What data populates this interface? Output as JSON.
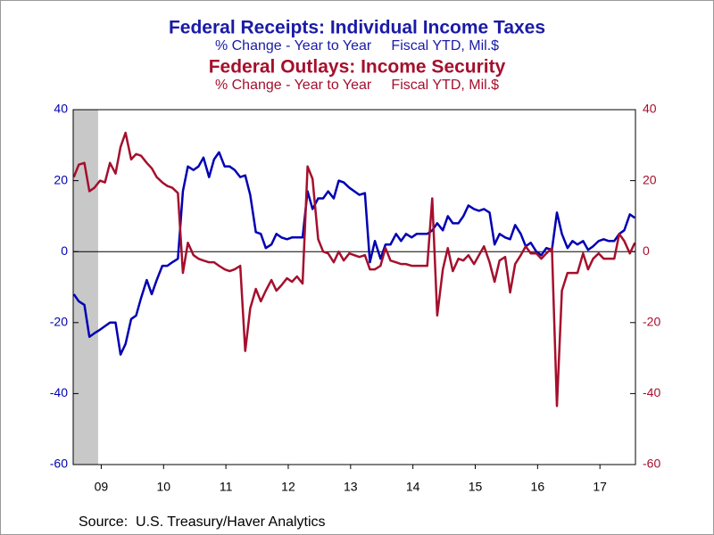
{
  "chart_data": {
    "type": "line",
    "title": "Federal Receipts: Individual Income Taxes",
    "subtitle": "% Change - Year to Year     Fiscal YTD, Mil.$",
    "title2": "Federal Outlays: Income Security",
    "subtitle2": "% Change - Year to Year     Fiscal YTD, Mil.$",
    "source": "Source:  U.S. Treasury/Haver Analytics",
    "x": [
      2009.06,
      2009.14,
      2009.23,
      2009.31,
      2009.39,
      2009.48,
      2009.56,
      2009.64,
      2009.73,
      2009.81,
      2009.89,
      2009.98,
      2010.06,
      2010.14,
      2010.23,
      2010.31,
      2010.39,
      2010.48,
      2010.56,
      2010.64,
      2010.73,
      2010.81,
      2010.89,
      2010.98,
      2011.06,
      2011.14,
      2011.23,
      2011.31,
      2011.39,
      2011.48,
      2011.56,
      2011.64,
      2011.73,
      2011.81,
      2011.89,
      2011.98,
      2012.06,
      2012.14,
      2012.23,
      2012.31,
      2012.39,
      2012.48,
      2012.56,
      2012.64,
      2012.73,
      2012.81,
      2012.89,
      2012.98,
      2013.06,
      2013.14,
      2013.23,
      2013.31,
      2013.39,
      2013.48,
      2013.56,
      2013.64,
      2013.73,
      2013.81,
      2013.89,
      2013.98,
      2014.06,
      2014.14,
      2014.23,
      2014.31,
      2014.39,
      2014.48,
      2014.56,
      2014.64,
      2014.73,
      2014.81,
      2014.89,
      2014.98,
      2015.06,
      2015.14,
      2015.23,
      2015.31,
      2015.39,
      2015.48,
      2015.56,
      2015.64,
      2015.73,
      2015.81,
      2015.89,
      2015.98,
      2016.06,
      2016.14,
      2016.23,
      2016.31,
      2016.39,
      2016.48,
      2016.56,
      2016.64,
      2016.73,
      2016.81,
      2016.89,
      2016.98,
      2017.06,
      2017.14,
      2017.23,
      2017.31,
      2017.39,
      2017.48,
      2017.56,
      2017.64,
      2017.73,
      2017.81,
      2017.89,
      2017.98,
      2018.06
    ],
    "series": [
      {
        "name": "Federal Receipts: Individual Income Taxes",
        "color": "#0000b4",
        "axis": "y",
        "values": [
          -12,
          -14,
          -15,
          -24,
          -23,
          -22,
          -21,
          -20,
          -20,
          -29,
          -26,
          -19,
          -18,
          -13,
          -8,
          -12,
          -8,
          -4,
          -4,
          -3,
          -2,
          17,
          24,
          23,
          24,
          26.5,
          21,
          26,
          28,
          24,
          24,
          23,
          21,
          21.5,
          16,
          5.5,
          5,
          1,
          2,
          5,
          4,
          3.5,
          4,
          4,
          4,
          17,
          12,
          15,
          15,
          17,
          15,
          20,
          19.5,
          18,
          17,
          16,
          16.5,
          -3,
          3,
          -2,
          2,
          2,
          5,
          3,
          5,
          4,
          5,
          5,
          5,
          6,
          8,
          6,
          10,
          8,
          8,
          10,
          13,
          12,
          11.5,
          12,
          11,
          2,
          5,
          4,
          3.5,
          7.5,
          5,
          1.5,
          2.5,
          0,
          -1,
          1,
          0.5,
          11,
          5,
          1,
          3,
          2,
          3,
          0.5,
          1.5,
          3,
          3.5,
          3,
          3,
          5,
          6,
          10.5,
          9.5
        ]
      },
      {
        "name": "Federal Outlays: Income Security",
        "color": "#a50f2d",
        "axis": "y2",
        "values": [
          21,
          24.5,
          25,
          17,
          18,
          20,
          19.5,
          25,
          22,
          29.5,
          33.5,
          26,
          27.5,
          27,
          25,
          23.5,
          21,
          19.5,
          18.5,
          18,
          16.5,
          -6,
          2.5,
          -1,
          -2,
          -2.5,
          -3,
          -3,
          -4,
          -5,
          -5.5,
          -5,
          -4,
          -28,
          -16,
          -10.5,
          -14,
          -11,
          -8,
          -11,
          -9.5,
          -7.5,
          -8.5,
          -7,
          -9,
          24,
          20.5,
          3.5,
          0,
          -0.5,
          -3,
          0,
          -2.5,
          -0.5,
          -1,
          -1.5,
          -1,
          -5,
          -5,
          -4,
          1,
          -2.5,
          -3,
          -3.5,
          -3.5,
          -4,
          -4,
          -4,
          -4,
          15,
          -18,
          -5,
          1,
          -5.5,
          -2,
          -2.5,
          -1,
          -3.5,
          -1,
          1.5,
          -3,
          -8.5,
          -2.5,
          -1.5,
          -11.5,
          -3.5,
          -1,
          1.5,
          -0.5,
          -0.5,
          -2,
          -0.5,
          1,
          -43.5,
          -11,
          -6,
          -6,
          -6,
          -0.5,
          -5,
          -2,
          -0.5,
          -2,
          -2,
          -2,
          5,
          3,
          -0.5,
          2.5
        ]
      }
    ],
    "xlim": [
      2009.05,
      2018.07
    ],
    "xticks": [
      {
        "value": 2009.5,
        "label": "09"
      },
      {
        "value": 2010.5,
        "label": "10"
      },
      {
        "value": 2011.5,
        "label": "11"
      },
      {
        "value": 2012.5,
        "label": "12"
      },
      {
        "value": 2013.5,
        "label": "13"
      },
      {
        "value": 2014.5,
        "label": "14"
      },
      {
        "value": 2015.5,
        "label": "15"
      },
      {
        "value": 2016.5,
        "label": "16"
      },
      {
        "value": 2017.5,
        "label": "17"
      }
    ],
    "ylim": [
      -60,
      40
    ],
    "yticks": [
      -60,
      -40,
      -20,
      0,
      20,
      40
    ],
    "y2lim": [
      -60,
      40
    ],
    "y2ticks": [
      -60,
      -40,
      -20,
      0,
      20,
      40
    ],
    "shaded_xrange": [
      2009.05,
      2009.45
    ],
    "shade_color": "#c8c8c8",
    "zero_line": true
  }
}
